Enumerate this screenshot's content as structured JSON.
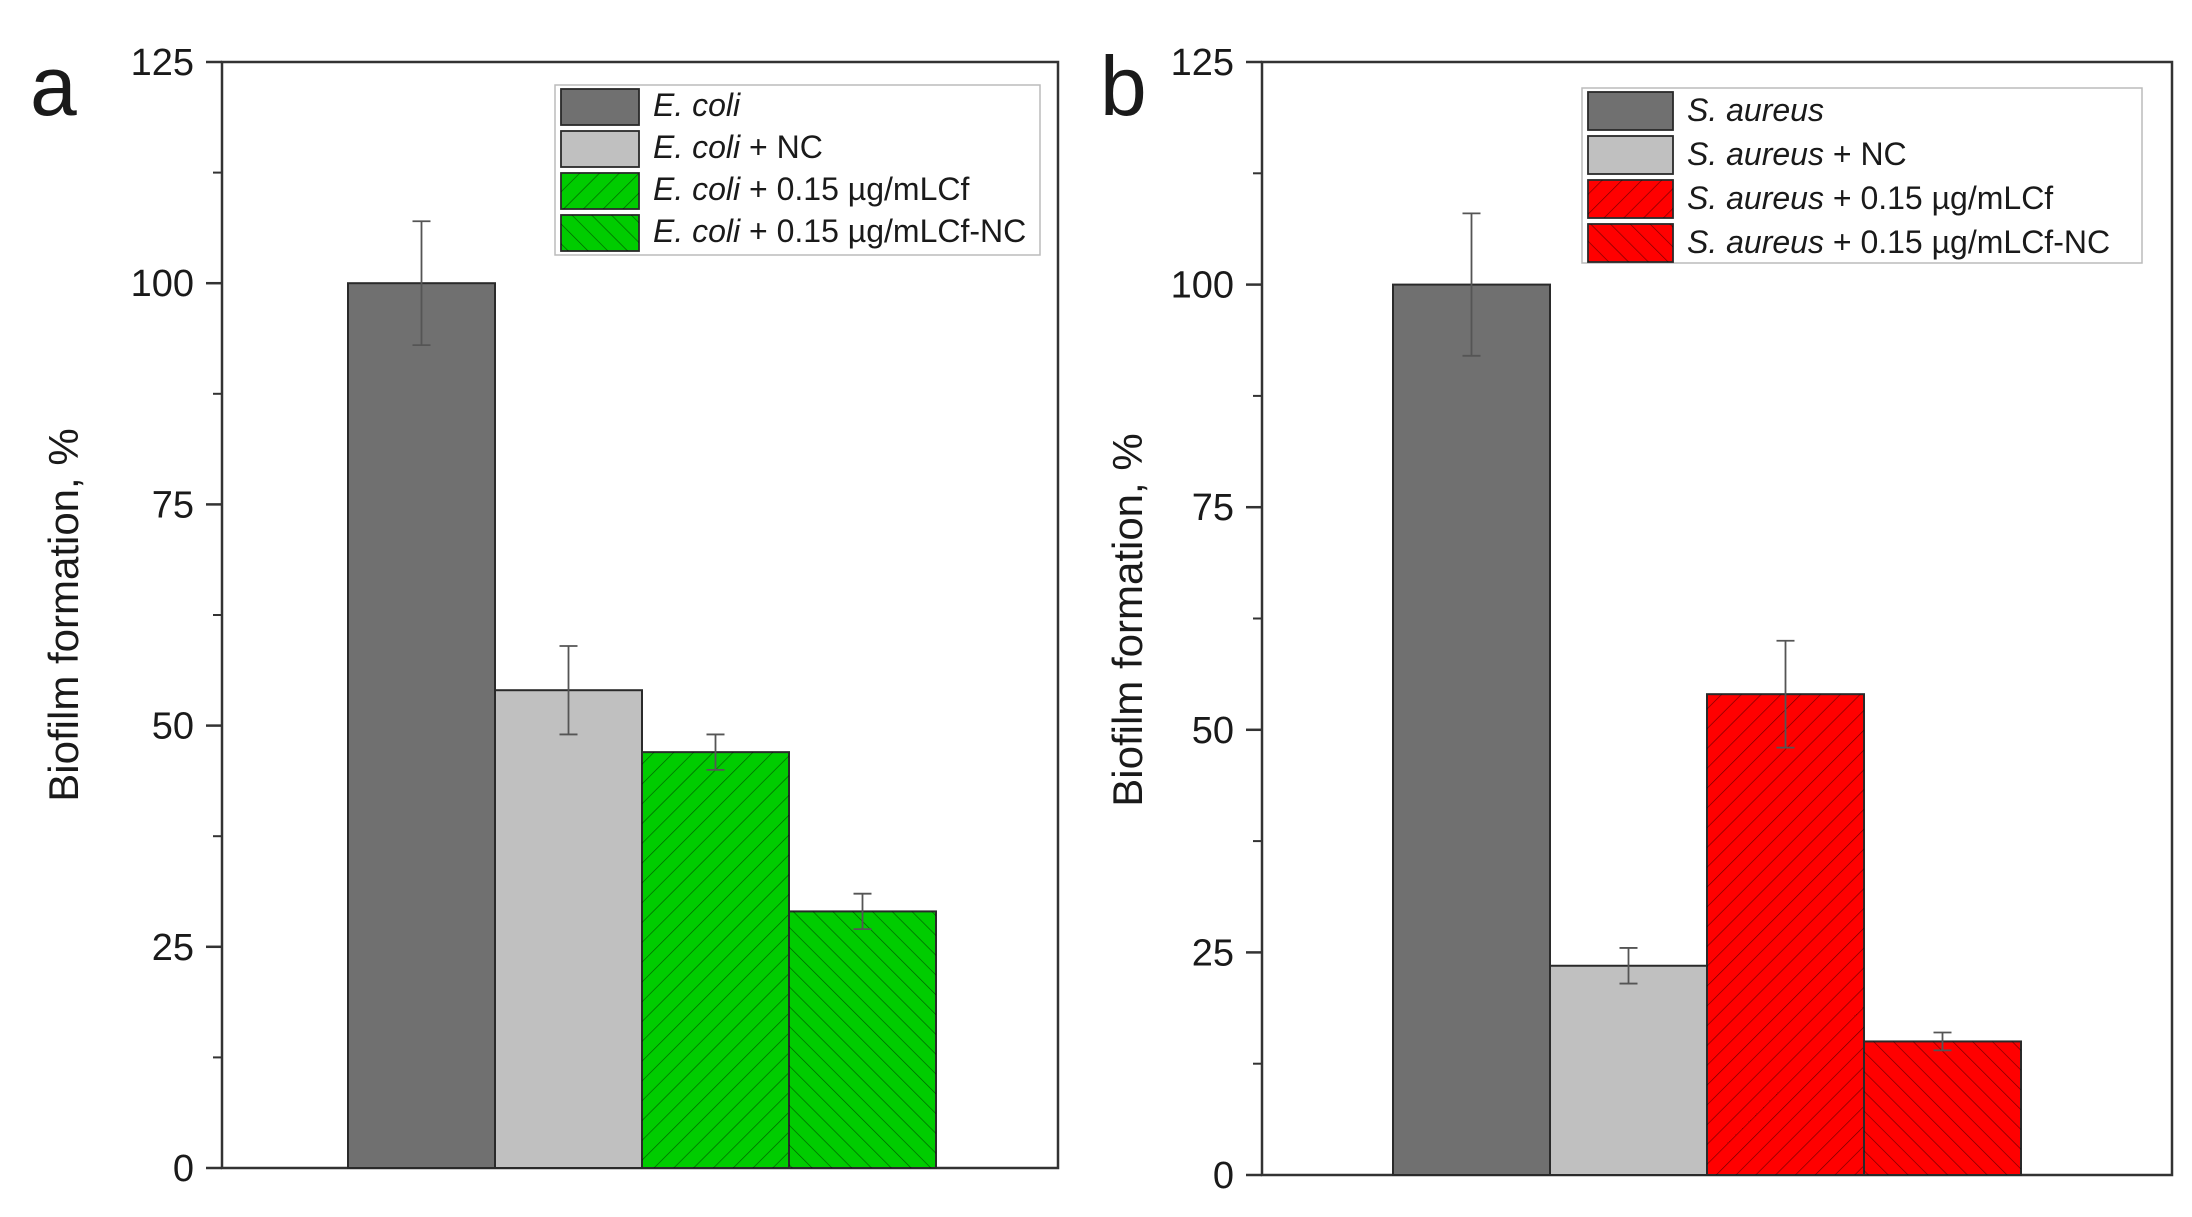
{
  "chart_data": [
    {
      "type": "bar",
      "panel_letter": "a",
      "ylabel": "Biofilm formation, %",
      "xlabel": "",
      "ylim": [
        0,
        125
      ],
      "yticks": [
        "0",
        "25",
        "50",
        "75",
        "100",
        "125"
      ],
      "legend_position": "top-right",
      "series": [
        {
          "name_italic": "E. coli",
          "name_rest": "",
          "value": 100,
          "error": 7,
          "color": "#707070",
          "hatch": false
        },
        {
          "name_italic": "E. coli",
          "name_rest": " + NC",
          "value": 54,
          "error": 5,
          "color": "#c0c0c0",
          "hatch": false
        },
        {
          "name_italic": "E. coli",
          "name_rest": " + 0.15 µg/mLCf",
          "value": 47,
          "error": 2,
          "color": "#00cc00",
          "hatch": "forward"
        },
        {
          "name_italic": "E. coli",
          "name_rest": " + 0.15 µg/mLCf-NC",
          "value": 29,
          "error": 2,
          "color": "#00cc00",
          "hatch": "backward"
        }
      ]
    },
    {
      "type": "bar",
      "panel_letter": "b",
      "ylabel": "Biofilm formation, %",
      "xlabel": "",
      "ylim": [
        0,
        125
      ],
      "yticks": [
        "0",
        "25",
        "50",
        "75",
        "100",
        "125"
      ],
      "legend_position": "top-right",
      "series": [
        {
          "name_italic": "S. aureus",
          "name_rest": "",
          "value": 100,
          "error": 8,
          "color": "#707070",
          "hatch": false
        },
        {
          "name_italic": "S. aureus",
          "name_rest": " + NC",
          "value": 23.5,
          "error": 2,
          "color": "#c0c0c0",
          "hatch": false
        },
        {
          "name_italic": "S. aureus",
          "name_rest": " + 0.15 µg/mLCf",
          "value": 54,
          "error": 6,
          "color": "#ff0000",
          "hatch": "forward"
        },
        {
          "name_italic": "S. aureus",
          "name_rest": " + 0.15 µg/mLCf-NC",
          "value": 15,
          "error": 1,
          "color": "#ff0000",
          "hatch": "backward"
        }
      ]
    }
  ]
}
